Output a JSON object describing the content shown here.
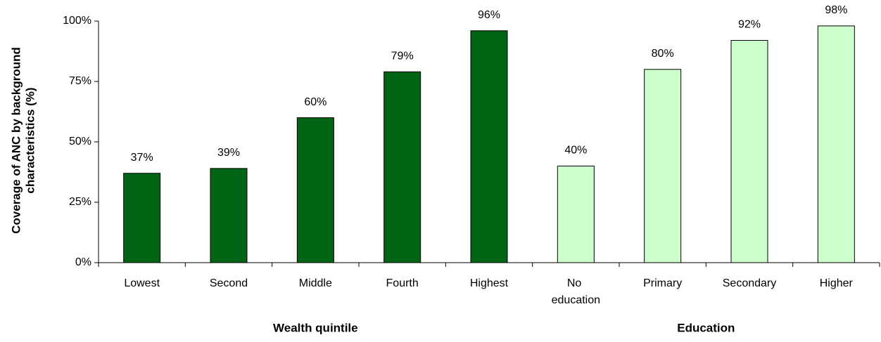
{
  "chart_data": {
    "type": "bar",
    "y_label": [
      "Coverage of ANC by background",
      "characteristics (%)"
    ],
    "groups": [
      {
        "name": "Wealth quintile",
        "color": "#006414",
        "stroke": "#000000",
        "categories": [
          "Lowest",
          "Second",
          "Middle",
          "Fourth",
          "Highest"
        ],
        "values": [
          37,
          39,
          60,
          79,
          96
        ],
        "value_labels": [
          "37%",
          "39%",
          "60%",
          "79%",
          "96%"
        ]
      },
      {
        "name": "Education",
        "color": "#ccffcc",
        "stroke": "#000000",
        "categories": [
          "No education",
          "Primary",
          "Secondary",
          "Higher"
        ],
        "values": [
          40,
          80,
          92,
          98
        ],
        "value_labels": [
          "40%",
          "80%",
          "92%",
          "98%"
        ]
      }
    ],
    "ylim": [
      0,
      100
    ],
    "yticks": [
      {
        "value": 0,
        "label": "0%"
      },
      {
        "value": 25,
        "label": "25%"
      },
      {
        "value": 50,
        "label": "50%"
      },
      {
        "value": 75,
        "label": "75%"
      },
      {
        "value": 100,
        "label": "100%"
      }
    ]
  }
}
